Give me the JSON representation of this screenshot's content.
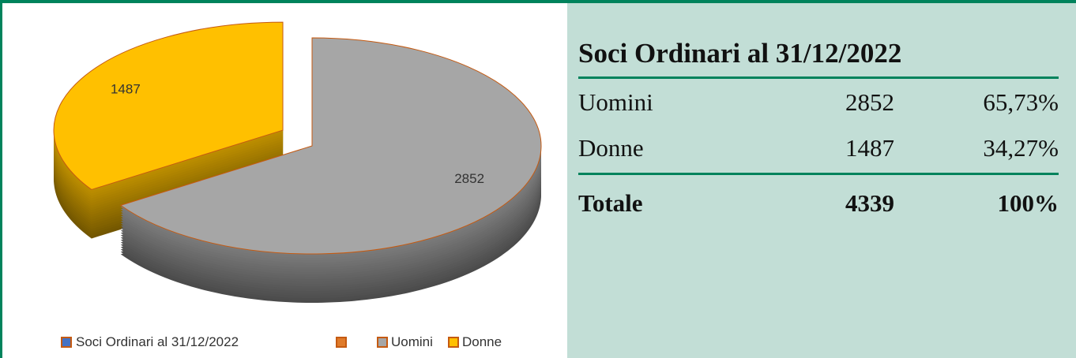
{
  "chart_data": {
    "type": "pie",
    "series_name": "Soci Ordinari al 31/12/2022",
    "categories": [
      "Uomini",
      "Donne"
    ],
    "values": [
      2852,
      1487
    ],
    "colors": [
      "#a6a6a6",
      "#ffc000"
    ]
  },
  "table": {
    "title": "Soci Ordinari al 31/12/2022",
    "rows": [
      [
        "Uomini",
        "2852",
        "65,73%"
      ],
      [
        "Donne",
        "1487",
        "34,27%"
      ]
    ],
    "total": [
      "Totale",
      "4339",
      "100%"
    ]
  }
}
